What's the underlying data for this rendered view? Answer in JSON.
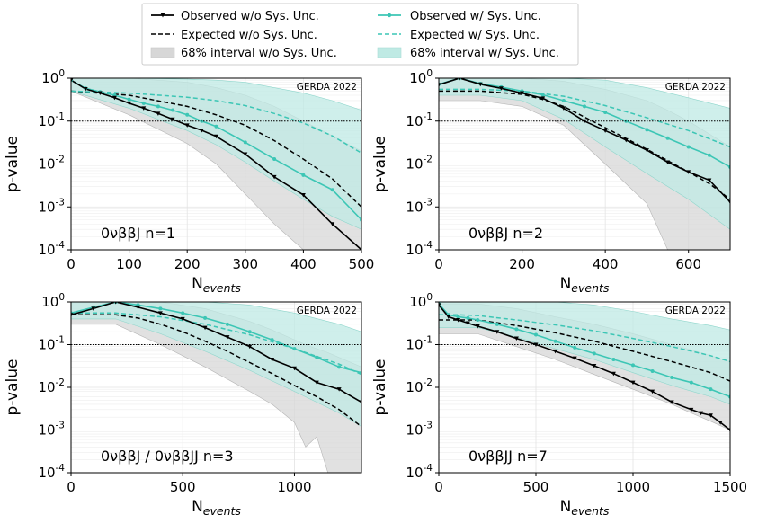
{
  "chart_data": {
    "type": "line",
    "yscale": "log",
    "ylim": [
      0.0001,
      1
    ],
    "ylabel": "p-value",
    "xlabel": "N_events",
    "credit": "GERDA 2022",
    "threshold": 0.1,
    "colors": {
      "wo": "#000000",
      "w": "#3cc6b5",
      "band_wo": "#d7d7d7",
      "band_w": "#bfeae4"
    },
    "legend": [
      {
        "key": "obs_wo",
        "label": "Observed w/o Sys. Unc."
      },
      {
        "key": "obs_w",
        "label": "Observed w/ Sys. Unc."
      },
      {
        "key": "exp_wo",
        "label": "Expected w/o Sys. Unc."
      },
      {
        "key": "exp_w",
        "label": "Expected w/ Sys. Unc."
      },
      {
        "key": "band_wo",
        "label": "68% interval w/o Sys. Unc."
      },
      {
        "key": "band_w",
        "label": "68% interval w/ Sys. Unc."
      }
    ],
    "y_ticks": [
      {
        "value": 1,
        "mant": "10",
        "exp": "0"
      },
      {
        "value": 0.1,
        "mant": "10",
        "exp": "-1"
      },
      {
        "value": 0.01,
        "mant": "10",
        "exp": "-2"
      },
      {
        "value": 0.001,
        "mant": "10",
        "exp": "-3"
      },
      {
        "value": 0.0001,
        "mant": "10",
        "exp": "-4"
      }
    ],
    "panels": [
      {
        "label": "0νββJ n=1",
        "xlim": [
          0,
          500
        ],
        "x_ticks": [
          0,
          100,
          200,
          300,
          400,
          500
        ],
        "obs_wo": {
          "x": [
            0,
            25,
            50,
            75,
            100,
            125,
            150,
            175,
            200,
            225,
            250,
            300,
            350,
            400,
            450,
            500
          ],
          "y": [
            0.9,
            0.56,
            0.45,
            0.35,
            0.26,
            0.2,
            0.15,
            0.11,
            0.08,
            0.061,
            0.044,
            0.017,
            0.005,
            0.0019,
            0.0004,
            0.0001
          ]
        },
        "obs_w": {
          "x": [
            0,
            25,
            50,
            75,
            100,
            125,
            150,
            175,
            200,
            225,
            250,
            300,
            350,
            400,
            450,
            500
          ],
          "y": [
            0.9,
            0.58,
            0.48,
            0.4,
            0.32,
            0.26,
            0.22,
            0.18,
            0.14,
            0.1,
            0.075,
            0.032,
            0.013,
            0.0055,
            0.0025,
            0.0005
          ]
        },
        "exp_wo": {
          "x": [
            0,
            100,
            200,
            250,
            300,
            350,
            400,
            450,
            500
          ],
          "y": [
            0.5,
            0.4,
            0.22,
            0.14,
            0.08,
            0.035,
            0.013,
            0.0045,
            0.001
          ]
        },
        "exp_w": {
          "x": [
            0,
            100,
            200,
            250,
            300,
            350,
            400,
            450,
            500
          ],
          "y": [
            0.5,
            0.45,
            0.36,
            0.3,
            0.23,
            0.15,
            0.09,
            0.045,
            0.018
          ]
        },
        "band_wo": {
          "x": [
            0,
            100,
            200,
            250,
            300,
            350,
            400,
            450,
            500
          ],
          "lo": [
            0.5,
            0.14,
            0.03,
            0.01,
            0.002,
            0.0004,
            0.0001,
            0.0001,
            0.0001
          ],
          "hi": [
            1,
            1,
            0.8,
            0.6,
            0.4,
            0.22,
            0.1,
            0.045,
            0.02
          ]
        },
        "band_w": {
          "x": [
            0,
            100,
            200,
            250,
            300,
            350,
            400,
            450,
            500
          ],
          "lo": [
            0.5,
            0.2,
            0.06,
            0.028,
            0.011,
            0.004,
            0.0015,
            0.0006,
            0.0003
          ],
          "hi": [
            1,
            1,
            0.95,
            0.9,
            0.8,
            0.6,
            0.45,
            0.3,
            0.18
          ]
        }
      },
      {
        "label": "0νββJ n=2",
        "xlim": [
          0,
          700
        ],
        "x_ticks": [
          0,
          200,
          400,
          600
        ],
        "obs_wo": {
          "x": [
            0,
            50,
            100,
            150,
            200,
            250,
            300,
            350,
            400,
            450,
            500,
            550,
            600,
            650,
            700
          ],
          "y": [
            0.7,
            1.0,
            0.72,
            0.58,
            0.45,
            0.34,
            0.2,
            0.1,
            0.06,
            0.036,
            0.021,
            0.011,
            0.0065,
            0.0042,
            0.0013
          ]
        },
        "obs_w": {
          "x": [
            0,
            50,
            100,
            150,
            200,
            250,
            300,
            350,
            400,
            450,
            500,
            550,
            600,
            650,
            700
          ],
          "y": [
            0.72,
            1.0,
            0.75,
            0.62,
            0.5,
            0.41,
            0.3,
            0.22,
            0.16,
            0.1,
            0.063,
            0.04,
            0.025,
            0.016,
            0.0085
          ]
        },
        "exp_wo": {
          "x": [
            0,
            100,
            200,
            250,
            300,
            400,
            500,
            600,
            650,
            700
          ],
          "y": [
            0.5,
            0.5,
            0.42,
            0.32,
            0.22,
            0.07,
            0.022,
            0.0065,
            0.0035,
            0.0015
          ]
        },
        "exp_w": {
          "x": [
            0,
            100,
            200,
            300,
            400,
            500,
            600,
            700
          ],
          "y": [
            0.55,
            0.55,
            0.5,
            0.38,
            0.23,
            0.12,
            0.06,
            0.025
          ]
        },
        "band_wo": {
          "x": [
            0,
            100,
            200,
            300,
            400,
            500,
            550,
            600,
            650,
            700
          ],
          "lo": [
            0.3,
            0.3,
            0.22,
            0.08,
            0.01,
            0.0012,
            0.0001,
            0.0001,
            0.0001,
            0.0001
          ],
          "hi": [
            1,
            1,
            1,
            0.85,
            0.55,
            0.3,
            0.18,
            0.1,
            0.05,
            0.025
          ]
        },
        "band_w": {
          "x": [
            0,
            100,
            200,
            300,
            400,
            500,
            600,
            700
          ],
          "lo": [
            0.4,
            0.4,
            0.3,
            0.11,
            0.025,
            0.006,
            0.0015,
            0.0003
          ],
          "hi": [
            1,
            1,
            1,
            1,
            0.9,
            0.6,
            0.35,
            0.2
          ]
        }
      },
      {
        "label": "0νββJ / 0νββJJ n=3",
        "xlim": [
          0,
          1300
        ],
        "x_ticks": [
          0,
          500,
          1000
        ],
        "obs_wo": {
          "x": [
            0,
            100,
            200,
            300,
            400,
            500,
            600,
            700,
            800,
            900,
            1000,
            1100,
            1200,
            1300
          ],
          "y": [
            0.5,
            0.7,
            1.0,
            0.75,
            0.55,
            0.4,
            0.25,
            0.15,
            0.09,
            0.045,
            0.028,
            0.013,
            0.009,
            0.0045
          ]
        },
        "obs_w": {
          "x": [
            0,
            100,
            200,
            300,
            400,
            500,
            600,
            700,
            800,
            900,
            1000,
            1100,
            1200,
            1300
          ],
          "y": [
            0.55,
            0.75,
            1.0,
            0.85,
            0.7,
            0.55,
            0.42,
            0.3,
            0.2,
            0.13,
            0.08,
            0.05,
            0.03,
            0.022
          ]
        },
        "exp_wo": {
          "x": [
            0,
            200,
            300,
            400,
            500,
            600,
            700,
            800,
            900,
            1000,
            1100,
            1200,
            1300
          ],
          "y": [
            0.5,
            0.5,
            0.42,
            0.3,
            0.2,
            0.12,
            0.07,
            0.038,
            0.021,
            0.011,
            0.006,
            0.003,
            0.0012
          ]
        },
        "exp_w": {
          "x": [
            0,
            200,
            400,
            600,
            800,
            1000,
            1200,
            1300
          ],
          "y": [
            0.55,
            0.55,
            0.45,
            0.3,
            0.17,
            0.08,
            0.035,
            0.02
          ]
        },
        "band_wo": {
          "x": [
            0,
            200,
            400,
            600,
            800,
            900,
            1000,
            1050,
            1100,
            1150,
            1200,
            1300
          ],
          "lo": [
            0.3,
            0.3,
            0.1,
            0.03,
            0.008,
            0.004,
            0.0015,
            0.0004,
            0.0007,
            0.0001,
            0.0001,
            0.0001
          ],
          "hi": [
            1,
            1,
            1,
            0.7,
            0.35,
            0.22,
            0.13,
            0.1,
            0.08,
            0.065,
            0.05,
            0.03
          ]
        },
        "band_w": {
          "x": [
            0,
            200,
            400,
            600,
            800,
            1000,
            1200,
            1300
          ],
          "lo": [
            0.4,
            0.4,
            0.18,
            0.07,
            0.025,
            0.008,
            0.0025,
            0.0012
          ],
          "hi": [
            1,
            1,
            1,
            1,
            0.85,
            0.55,
            0.3,
            0.2
          ]
        }
      },
      {
        "label": "0νββJJ n=7",
        "xlim": [
          0,
          1500
        ],
        "x_ticks": [
          0,
          500,
          1000,
          1500
        ],
        "obs_wo": {
          "x": [
            0,
            50,
            100,
            150,
            200,
            300,
            400,
            500,
            600,
            700,
            800,
            900,
            1000,
            1100,
            1200,
            1300,
            1350,
            1400,
            1450,
            1500
          ],
          "y": [
            0.85,
            0.45,
            0.38,
            0.32,
            0.27,
            0.2,
            0.14,
            0.1,
            0.07,
            0.048,
            0.032,
            0.021,
            0.013,
            0.008,
            0.0045,
            0.003,
            0.0025,
            0.0022,
            0.0015,
            0.001
          ]
        },
        "obs_w": {
          "x": [
            0,
            50,
            100,
            150,
            200,
            300,
            400,
            500,
            600,
            700,
            800,
            900,
            1000,
            1100,
            1200,
            1300,
            1400,
            1500
          ],
          "y": [
            0.9,
            0.5,
            0.45,
            0.42,
            0.38,
            0.3,
            0.23,
            0.17,
            0.12,
            0.085,
            0.062,
            0.045,
            0.033,
            0.024,
            0.017,
            0.013,
            0.009,
            0.006
          ]
        },
        "exp_wo": {
          "x": [
            0,
            100,
            200,
            400,
            600,
            800,
            1000,
            1200,
            1400,
            1500
          ],
          "y": [
            0.38,
            0.38,
            0.38,
            0.28,
            0.19,
            0.12,
            0.07,
            0.04,
            0.022,
            0.014
          ]
        },
        "exp_w": {
          "x": [
            0,
            100,
            200,
            400,
            600,
            800,
            1000,
            1200,
            1400,
            1500
          ],
          "y": [
            0.5,
            0.5,
            0.48,
            0.38,
            0.29,
            0.21,
            0.14,
            0.09,
            0.055,
            0.04
          ]
        },
        "band_wo": {
          "x": [
            0,
            200,
            400,
            600,
            800,
            1000,
            1200,
            1300,
            1400,
            1500
          ],
          "lo": [
            0.18,
            0.18,
            0.09,
            0.045,
            0.02,
            0.009,
            0.004,
            0.0025,
            0.0016,
            0.001
          ],
          "hi": [
            0.9,
            0.9,
            0.7,
            0.45,
            0.3,
            0.18,
            0.1,
            0.075,
            0.055,
            0.04
          ]
        },
        "band_w": {
          "x": [
            0,
            200,
            400,
            600,
            800,
            1000,
            1200,
            1400,
            1500
          ],
          "lo": [
            0.25,
            0.25,
            0.15,
            0.08,
            0.045,
            0.022,
            0.011,
            0.006,
            0.004
          ],
          "hi": [
            1,
            1,
            1,
            1,
            0.85,
            0.6,
            0.4,
            0.28,
            0.22
          ]
        }
      }
    ]
  }
}
